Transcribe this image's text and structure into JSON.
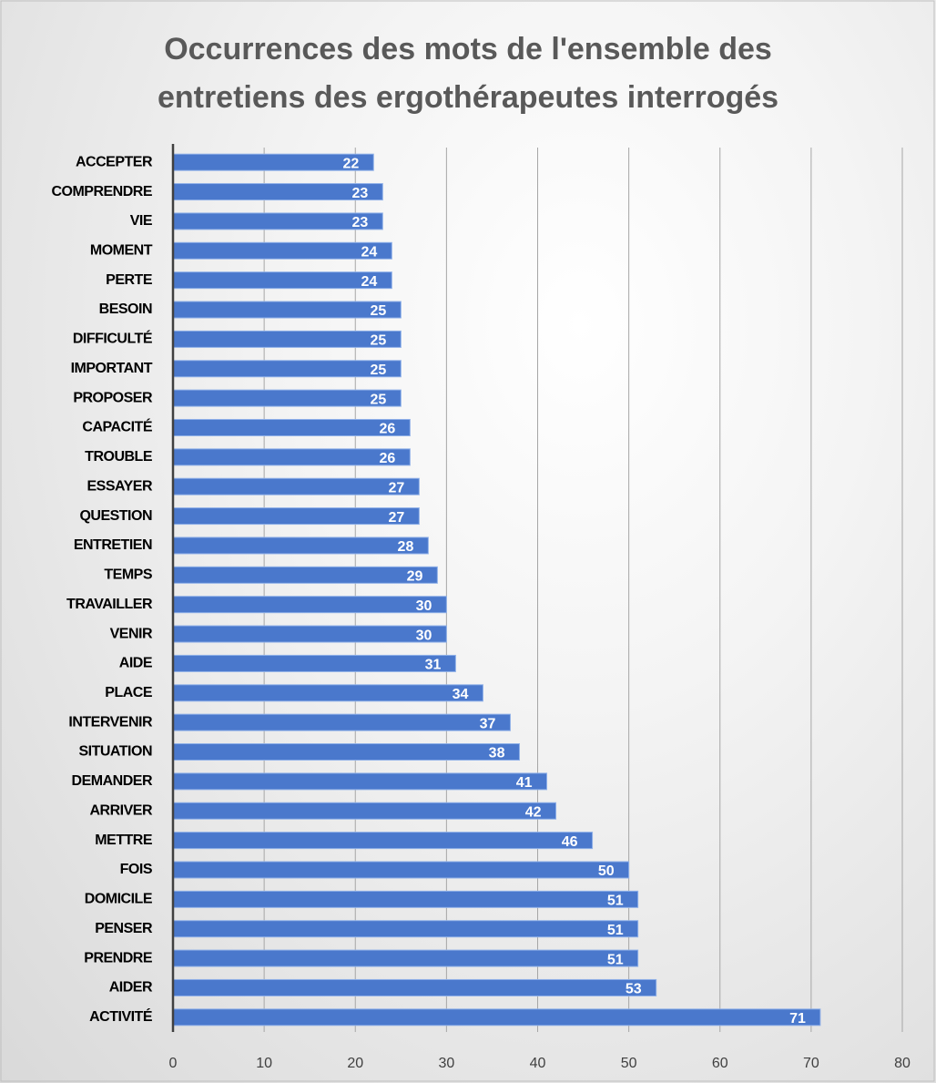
{
  "chart_data": {
    "type": "barh",
    "title": "Occurrences des mots de l'ensemble des entretiens des ergothérapeutes interrogés",
    "categories": [
      "ACCEPTER",
      "COMPRENDRE",
      "VIE",
      "MOMENT",
      "PERTE",
      "BESOIN",
      "DIFFICULTÉ",
      "IMPORTANT",
      "PROPOSER",
      "CAPACITÉ",
      "TROUBLE",
      "ESSAYER",
      "QUESTION",
      "ENTRETIEN",
      "TEMPS",
      "TRAVAILLER",
      "VENIR",
      "AIDE",
      "PLACE",
      "INTERVENIR",
      "SITUATION",
      "DEMANDER",
      "ARRIVER",
      "METTRE",
      "FOIS",
      "DOMICILE",
      "PENSER",
      "PRENDRE",
      "AIDER",
      "ACTIVITÉ"
    ],
    "values": [
      22,
      23,
      23,
      24,
      24,
      25,
      25,
      25,
      25,
      26,
      26,
      27,
      27,
      28,
      29,
      30,
      30,
      31,
      34,
      37,
      38,
      41,
      42,
      46,
      50,
      51,
      51,
      51,
      53,
      71
    ],
    "color": "#4a78cc",
    "xlim": [
      0,
      80
    ],
    "xticks": [
      0,
      10,
      20,
      30,
      40,
      50,
      60,
      70,
      80
    ],
    "grid": true
  }
}
